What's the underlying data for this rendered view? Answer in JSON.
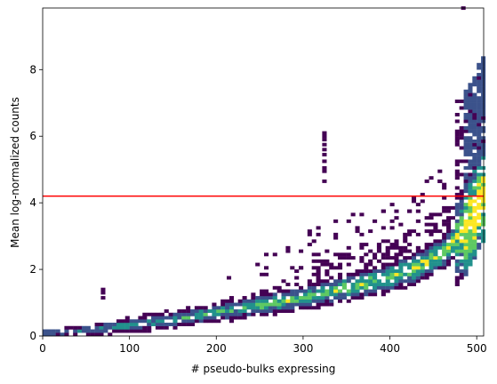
{
  "chart_data": {
    "type": "heatmap",
    "title": "",
    "xlabel": "# pseudo-bulks expressing",
    "ylabel": "Mean log-normalized counts",
    "xlim": [
      0,
      508
    ],
    "ylim": [
      0,
      9.85
    ],
    "xticks": [
      0,
      100,
      200,
      300,
      400,
      500
    ],
    "yticks": [
      0,
      2,
      4,
      6,
      8
    ],
    "xtick_labels": [
      "0",
      "100",
      "200",
      "300",
      "400",
      "500"
    ],
    "ytick_labels": [
      "0",
      "2",
      "4",
      "6",
      "8"
    ],
    "bins": {
      "x_width": 5.0,
      "y_height": 0.1
    },
    "colormap": "viridis",
    "colors": [
      "#440154",
      "#3b528b",
      "#21918c",
      "#5ec962",
      "#fde725"
    ],
    "background": "#ffffff",
    "hline": {
      "y": 4.2,
      "color": "#ff0000"
    },
    "trend": [
      [
        0,
        0.03
      ],
      [
        50,
        0.12
      ],
      [
        100,
        0.27
      ],
      [
        150,
        0.45
      ],
      [
        200,
        0.65
      ],
      [
        250,
        0.87
      ],
      [
        300,
        1.1
      ],
      [
        350,
        1.38
      ],
      [
        400,
        1.72
      ],
      [
        430,
        2.0
      ],
      [
        460,
        2.45
      ],
      [
        480,
        2.9
      ],
      [
        495,
        3.4
      ],
      [
        505,
        4.1
      ]
    ],
    "outliers": [
      [
        322,
        6.05
      ],
      [
        322,
        5.95
      ],
      [
        322,
        5.85
      ],
      [
        322,
        5.7
      ],
      [
        322,
        5.55
      ],
      [
        322,
        5.4
      ],
      [
        322,
        5.2
      ],
      [
        322,
        5.0
      ],
      [
        322,
        4.9
      ],
      [
        322,
        4.6
      ],
      [
        67,
        1.35
      ],
      [
        67,
        1.25
      ],
      [
        67,
        1.1
      ],
      [
        482,
        9.8
      ],
      [
        212,
        1.7
      ]
    ]
  }
}
